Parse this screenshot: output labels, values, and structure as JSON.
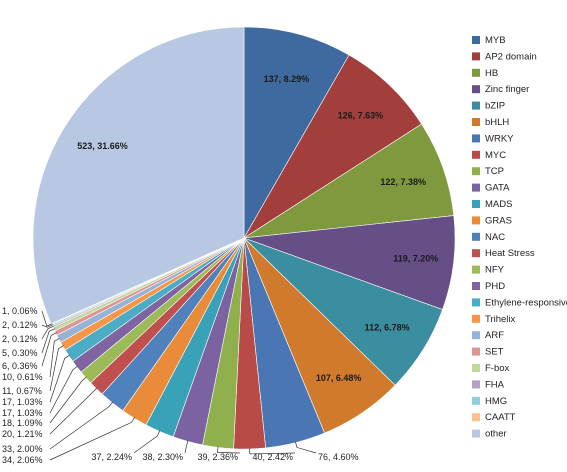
{
  "chart_data": {
    "type": "pie",
    "start": "12 o'clock",
    "direction": "clockwise",
    "legend_position": "right",
    "slices": [
      {
        "name": "MYB",
        "value": 137,
        "label": "137, 8.29%",
        "color": "#3f6aa0"
      },
      {
        "name": "AP2 domain",
        "value": 126,
        "label": "126, 7.63%",
        "color": "#a23f3d"
      },
      {
        "name": "HB",
        "value": 122,
        "label": "122, 7.38%",
        "color": "#7f9a3e"
      },
      {
        "name": "Zinc finger",
        "value": 119,
        "label": "119, 7.20%",
        "color": "#654f86"
      },
      {
        "name": "bZIP",
        "value": 112,
        "label": "112, 6.78%",
        "color": "#3b8ea0"
      },
      {
        "name": "bHLH",
        "value": 107,
        "label": "107, 6.48%",
        "color": "#d07a2e"
      },
      {
        "name": "WRKY",
        "value": 76,
        "label": "76, 4.60%",
        "color": "#4a77b4"
      },
      {
        "name": "MYC",
        "value": 40,
        "label": "40, 2.42%",
        "color": "#b84a48"
      },
      {
        "name": "TCP",
        "value": 39,
        "label": "39, 2.36%",
        "color": "#8fb04c"
      },
      {
        "name": "GATA",
        "value": 38,
        "label": "38, 2.30%",
        "color": "#7a63a0"
      },
      {
        "name": "MADS",
        "value": 37,
        "label": "37, 2.24%",
        "color": "#3aa2b8"
      },
      {
        "name": "GRAS",
        "value": 34,
        "label": "34, 2.06%",
        "color": "#ea8b3a"
      },
      {
        "name": "NAC",
        "value": 33,
        "label": "33, 2.00%",
        "color": "#4f81bd"
      },
      {
        "name": "Heat Stress",
        "value": 20,
        "label": "20, 1.21%",
        "color": "#c0504d"
      },
      {
        "name": "NFY",
        "value": 18,
        "label": "18, 1.09%",
        "color": "#9bbb59"
      },
      {
        "name": "PHD",
        "value": 17,
        "label": "17, 1.03%",
        "color": "#8064a2"
      },
      {
        "name": "Ethylene-responsive",
        "value": 17,
        "label": "17, 1.03%",
        "color": "#4bacc6"
      },
      {
        "name": "Trihelix",
        "value": 11,
        "label": "11, 0.67%",
        "color": "#f79646"
      },
      {
        "name": "ARF",
        "value": 10,
        "label": "10, 0.61%",
        "color": "#95b3d7"
      },
      {
        "name": "SET",
        "value": 6,
        "label": "6, 0.36%",
        "color": "#d99694"
      },
      {
        "name": "F-box",
        "value": 5,
        "label": "5, 0.30%",
        "color": "#c3d69b"
      },
      {
        "name": "FHA",
        "value": 2,
        "label": "2, 0.12%",
        "color": "#b3a2c7"
      },
      {
        "name": "HMG",
        "value": 2,
        "label": "2, 0.12%",
        "color": "#93cddd"
      },
      {
        "name": "CAATT",
        "value": 1,
        "label": "1, 0.06%",
        "color": "#fac08f"
      },
      {
        "name": "other",
        "value": 523,
        "label": "523, 31.66%",
        "color": "#b9c8e2"
      }
    ]
  }
}
